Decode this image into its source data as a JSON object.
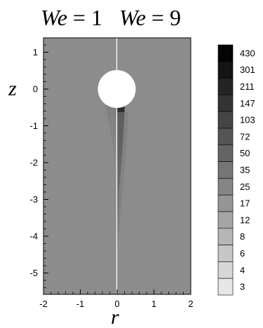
{
  "figure": {
    "title_left_var": "We",
    "title_left_eq": " = 1",
    "title_right_var": "We",
    "title_right_eq": " = 9",
    "xlabel": "r",
    "ylabel": "z",
    "x_ticks": [
      "-2",
      "-1",
      "0",
      "1",
      "2"
    ],
    "y_ticks": [
      "1",
      "0",
      "-1",
      "-2",
      "-3",
      "-4",
      "-5"
    ],
    "colorbar_labels": [
      "430",
      "301",
      "211",
      "147",
      "103",
      "72",
      "50",
      "35",
      "25",
      "17",
      "12",
      "8",
      "6",
      "4",
      "3"
    ],
    "colors": {
      "field": "#8c8c8c",
      "sphere": "#ffffff",
      "divider": "#ffffff"
    }
  }
}
